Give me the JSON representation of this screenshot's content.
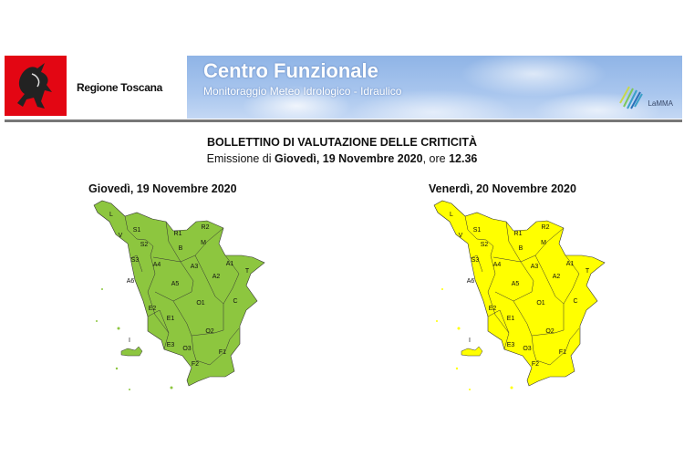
{
  "header": {
    "region_name": "Regione Toscana",
    "banner_title": "Centro Funzionale",
    "banner_subtitle": "Monitoraggio Meteo Idrologico - Idraulico",
    "partner_logo": "LaMMA"
  },
  "bulletin": {
    "title": "BOLLETTINO DI VALUTAZIONE DELLE CRITICITÀ",
    "emission_prefix": "Emissione di ",
    "emission_date": "Giovedì, 19 Novembre 2020",
    "emission_mid": ", ore ",
    "emission_time": "12.36"
  },
  "maps": [
    {
      "title": "Giovedì, 19 Novembre 2020",
      "color": "#8dc63f",
      "level": "green"
    },
    {
      "title": "Venerdì, 20 Novembre 2020",
      "color": "#ffff00",
      "level": "yellow"
    }
  ],
  "zones": [
    "L",
    "S1",
    "V",
    "R1",
    "R2",
    "S2",
    "B",
    "M",
    "S3",
    "A4",
    "A3",
    "A1",
    "T",
    "A2",
    "A6",
    "A5",
    "O1",
    "C",
    "E2",
    "E1",
    "O2",
    "I",
    "E3",
    "O3",
    "F1",
    "F2"
  ]
}
